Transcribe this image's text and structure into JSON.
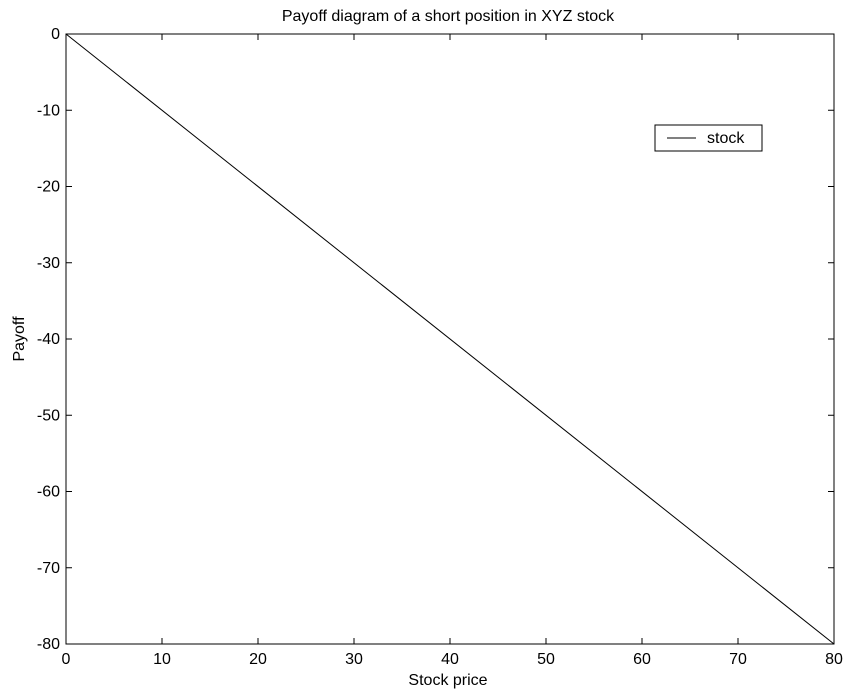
{
  "chart_data": {
    "type": "line",
    "title": "Payoff diagram of a short position in XYZ stock",
    "xlabel": "Stock price",
    "ylabel": "Payoff",
    "xlim": [
      0,
      80
    ],
    "ylim": [
      -80,
      0
    ],
    "xticks": [
      0,
      10,
      20,
      30,
      40,
      50,
      60,
      70,
      80
    ],
    "yticks": [
      0,
      -10,
      -20,
      -30,
      -40,
      -50,
      -60,
      -70,
      -80
    ],
    "grid": false,
    "legend_placement": "top-right",
    "series": [
      {
        "name": "stock",
        "color": "#000000",
        "x": [
          0,
          80
        ],
        "y": [
          0,
          -80
        ]
      }
    ]
  }
}
